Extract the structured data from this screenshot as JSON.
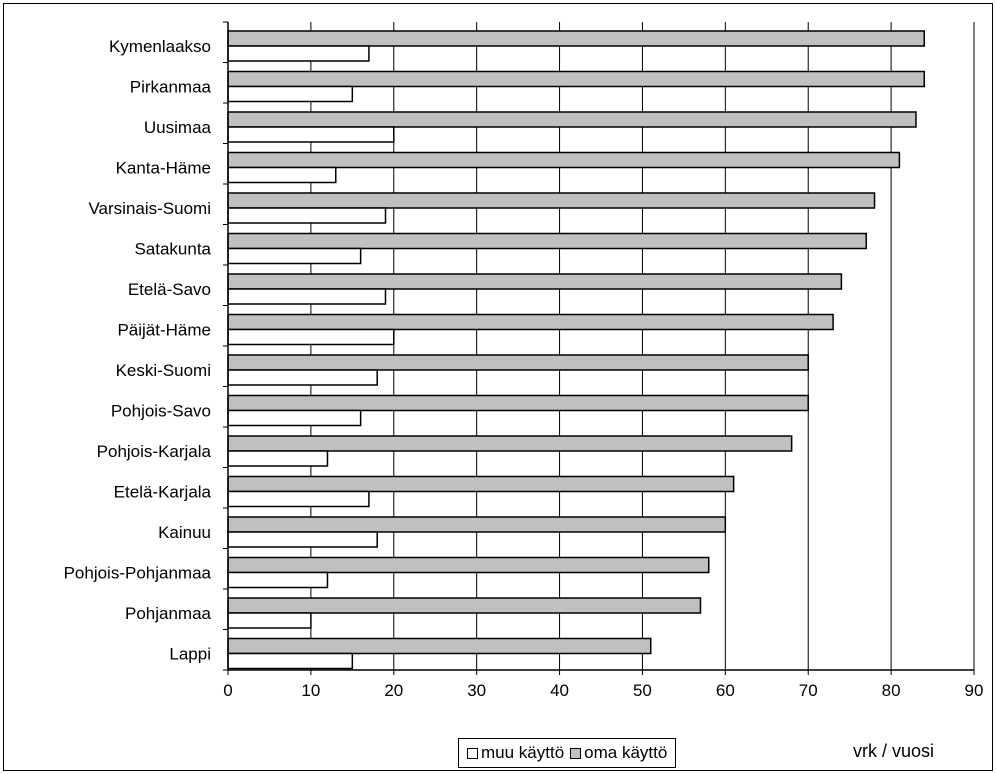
{
  "chart_data": {
    "type": "bar",
    "orientation": "horizontal",
    "title": "",
    "xlabel": "vrk / vuosi",
    "ylabel": "",
    "xlim": [
      0,
      90
    ],
    "x_ticks": [
      0,
      10,
      20,
      30,
      40,
      50,
      60,
      70,
      80,
      90
    ],
    "grid": "vertical",
    "legend_position": "bottom",
    "categories": [
      "Kymenlaakso",
      "Pirkanmaa",
      "Uusimaa",
      "Kanta-Häme",
      "Varsinais-Suomi",
      "Satakunta",
      "Etelä-Savo",
      "Päijät-Häme",
      "Keski-Suomi",
      "Pohjois-Savo",
      "Pohjois-Karjala",
      "Etelä-Karjala",
      "Kainuu",
      "Pohjois-Pohjanmaa",
      "Pohjanmaa",
      "Lappi"
    ],
    "series": [
      {
        "name": "oma käyttö",
        "color": "#c0c0c0",
        "values": [
          84,
          84,
          83,
          81,
          78,
          77,
          74,
          73,
          70,
          70,
          68,
          61,
          60,
          58,
          57,
          51
        ]
      },
      {
        "name": "muu käyttö",
        "color": "#ffffff",
        "values": [
          17,
          15,
          20,
          13,
          19,
          16,
          19,
          20,
          18,
          16,
          12,
          17,
          18,
          12,
          10,
          15
        ]
      }
    ]
  }
}
